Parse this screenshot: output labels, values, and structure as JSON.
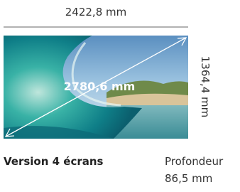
{
  "dimensions": {
    "width": "2422,8 mm",
    "height": "1364,4 mm",
    "diagonal": "2780,6 mm"
  },
  "product": {
    "name": "Version 4 écrans",
    "depth_label": "Profondeur",
    "depth_value": "86,5 mm"
  }
}
